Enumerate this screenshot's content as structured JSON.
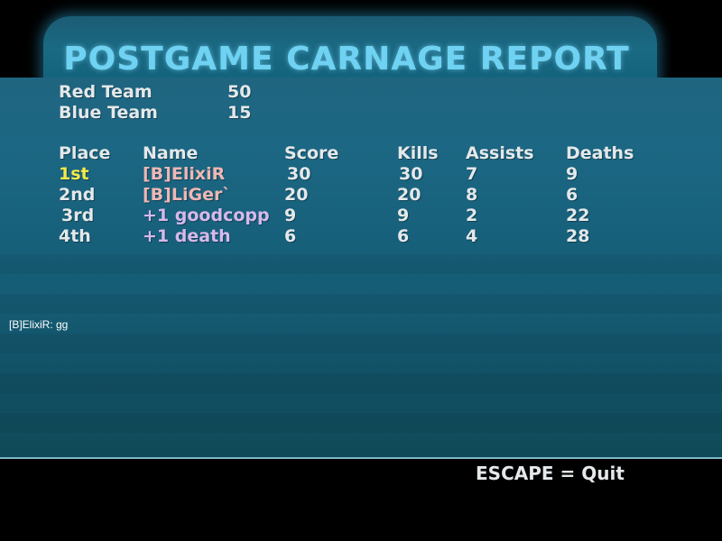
{
  "title": "POSTGAME CARNAGE REPORT",
  "teams": [
    {
      "name": "Red Team",
      "score": "50"
    },
    {
      "name": "Blue Team",
      "score": "15"
    }
  ],
  "columns": {
    "place": "Place",
    "name": "Name",
    "score": "Score",
    "kills": "Kills",
    "assists": "Assists",
    "deaths": "Deaths"
  },
  "players": [
    {
      "place": "1st",
      "name": "[B]ElixiR",
      "score": "30",
      "kills": "30",
      "assists": "7",
      "deaths": "9",
      "name_color": "#f0b7b4",
      "row_color": "#f4e84a"
    },
    {
      "place": "2nd",
      "name": "[B]LiGer`",
      "score": "20",
      "kills": "20",
      "assists": "8",
      "deaths": "6",
      "name_color": "#f0b7b4",
      "row_color": "#e4e8ea"
    },
    {
      "place": "3rd",
      "name": "+1 goodcopp",
      "score": "9",
      "kills": "9",
      "assists": "2",
      "deaths": "22",
      "name_color": "#d7b9ec",
      "row_color": "#e4e8ea"
    },
    {
      "place": "4th",
      "name": "+1 death",
      "score": "6",
      "kills": "6",
      "assists": "4",
      "deaths": "28",
      "name_color": "#d7b9ec",
      "row_color": "#e4e8ea"
    }
  ],
  "chat": {
    "line": "[B]ElixiR: gg"
  },
  "footer": {
    "quit_hint": "ESCAPE = Quit"
  },
  "colors": {
    "title": "#6fd2f2",
    "panel": "#17617c",
    "leader": "#f4e84a"
  }
}
